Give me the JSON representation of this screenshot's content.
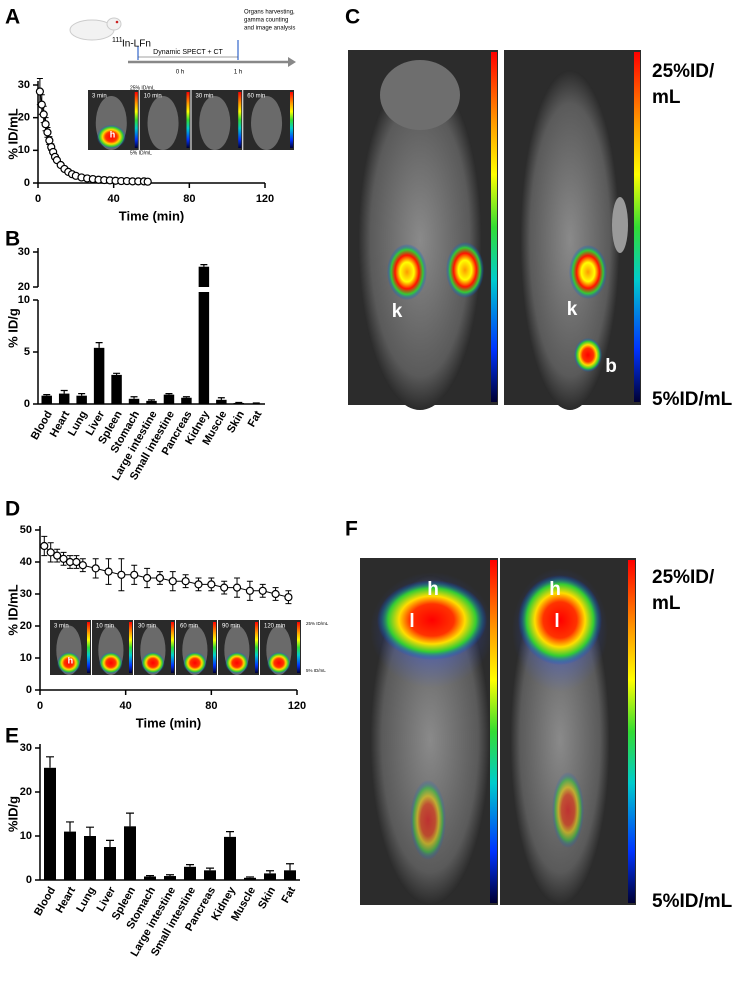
{
  "chart_data": [
    {
      "type": "line",
      "label": "A",
      "ylabel": "% ID/mL",
      "xlabel": "Time (min)",
      "color": "#000000",
      "x": [
        1,
        2,
        3,
        4,
        5,
        6,
        7,
        8,
        9,
        10,
        12,
        14,
        16,
        18,
        20,
        23,
        26,
        29,
        32,
        35,
        38,
        41,
        44,
        47,
        50,
        53,
        56,
        58
      ],
      "values": [
        28,
        24,
        21,
        18,
        15.5,
        13,
        11,
        9.5,
        8,
        7,
        5.5,
        4.3,
        3.4,
        2.7,
        2.2,
        1.7,
        1.4,
        1.2,
        1.0,
        0.9,
        0.8,
        0.7,
        0.6,
        0.6,
        0.5,
        0.5,
        0.5,
        0.4
      ],
      "errors": [
        4,
        3,
        2.5,
        2,
        1.5,
        1.2,
        1,
        0.8,
        0.7,
        0.6,
        0.5,
        0.4,
        0.3,
        0.3,
        0.3,
        0.2,
        0.2,
        0.2,
        0.2,
        0.2,
        0.2,
        0.2,
        0.2,
        0.2,
        0.2,
        0.2,
        0.2,
        0.2
      ],
      "xlim": [
        0,
        120
      ],
      "xticks": [
        0,
        40,
        80,
        120
      ],
      "ylim": [
        0,
        30
      ],
      "yticks": [
        0,
        10,
        20,
        30
      ],
      "inset": {
        "isotope": "111",
        "tracer": "In-LFn",
        "protocol": "Dynamic SPECT + CT",
        "timepoints": [
          "0 h",
          "1 h"
        ],
        "endpoint": [
          "Organs harvesting,",
          "gamma counting",
          "and image analysis"
        ],
        "frames": [
          "3 min",
          "10 min",
          "30 min",
          "60 min"
        ],
        "scale_max": "25% ID/mL",
        "scale_min": "5% ID/mL",
        "organ": "h"
      }
    },
    {
      "type": "bar",
      "label": "B",
      "ylabel": "% ID/g",
      "color": "#000000",
      "categories": [
        "Blood",
        "Heart",
        "Lung",
        "Liver",
        "Spleen",
        "Stomach",
        "Large intestine",
        "Small intestine",
        "Pancreas",
        "Kidney",
        "Muscle",
        "Skin",
        "Fat"
      ],
      "values": [
        0.8,
        1.0,
        0.8,
        5.4,
        2.8,
        0.5,
        0.3,
        0.9,
        0.6,
        25.8,
        0.4,
        0.1,
        0.05
      ],
      "errors": [
        0.1,
        0.3,
        0.2,
        0.5,
        0.15,
        0.2,
        0.1,
        0.1,
        0.1,
        0.6,
        0.2,
        0.05,
        0.05
      ],
      "segments": [
        {
          "ylim": [
            0,
            10
          ],
          "yticks": [
            0,
            5,
            10
          ]
        },
        {
          "ylim": [
            20,
            30
          ],
          "yticks": [
            20,
            30
          ]
        }
      ]
    },
    {
      "type": "line",
      "label": "D",
      "ylabel": "% ID/mL",
      "xlabel": "Time (min)",
      "color": "#000000",
      "x": [
        2,
        5,
        8,
        11,
        14,
        17,
        20,
        26,
        32,
        38,
        44,
        50,
        56,
        62,
        68,
        74,
        80,
        86,
        92,
        98,
        104,
        110,
        116
      ],
      "values": [
        45,
        43,
        42,
        41,
        40,
        40,
        39,
        38,
        37,
        36,
        36,
        35,
        35,
        34,
        34,
        33,
        33,
        32,
        32,
        31,
        31,
        30,
        29
      ],
      "errors": [
        3,
        3,
        2,
        2,
        2,
        2,
        2,
        3,
        4,
        5,
        3,
        3,
        2,
        3,
        2,
        2,
        2,
        2,
        3,
        3,
        2,
        2,
        2
      ],
      "xlim": [
        0,
        120
      ],
      "xticks": [
        0,
        40,
        80,
        120
      ],
      "ylim": [
        0,
        50
      ],
      "yticks": [
        0,
        10,
        20,
        30,
        40,
        50
      ],
      "inset": {
        "frames": [
          "3 min",
          "10 min",
          "30 min",
          "60 min",
          "90 min",
          "120 min"
        ],
        "scale_max": "25% ID/mL",
        "scale_min": "5% ID/mL",
        "organ": "h"
      }
    },
    {
      "type": "bar",
      "label": "E",
      "ylabel": "%ID/g",
      "color": "#000000",
      "categories": [
        "Blood",
        "Heart",
        "Lung",
        "Liver",
        "Spleen",
        "Stomach",
        "Large intestine",
        "Small intestine",
        "Pancreas",
        "Kidney",
        "Muscle",
        "Skin",
        "Fat"
      ],
      "values": [
        25.5,
        11,
        10,
        7.5,
        12.2,
        0.8,
        0.9,
        3,
        2.2,
        9.8,
        0.5,
        1.5,
        2.2
      ],
      "errors": [
        2.5,
        2.2,
        2,
        1.5,
        3,
        0.2,
        0.3,
        0.5,
        0.5,
        1.2,
        0.2,
        0.6,
        1.5
      ],
      "ylim": [
        0,
        30
      ],
      "yticks": [
        0,
        10,
        20,
        30
      ]
    }
  ],
  "images": [
    {
      "label": "C",
      "scale_max": [
        "25%ID/",
        "mL"
      ],
      "scale_min": "5%ID/mL",
      "markers": [
        "k",
        "k",
        "b"
      ]
    },
    {
      "label": "F",
      "scale_max": [
        "25%ID/",
        "mL"
      ],
      "scale_min": "5%ID/mL",
      "markers": [
        "h",
        "l",
        "h",
        "l"
      ]
    }
  ]
}
